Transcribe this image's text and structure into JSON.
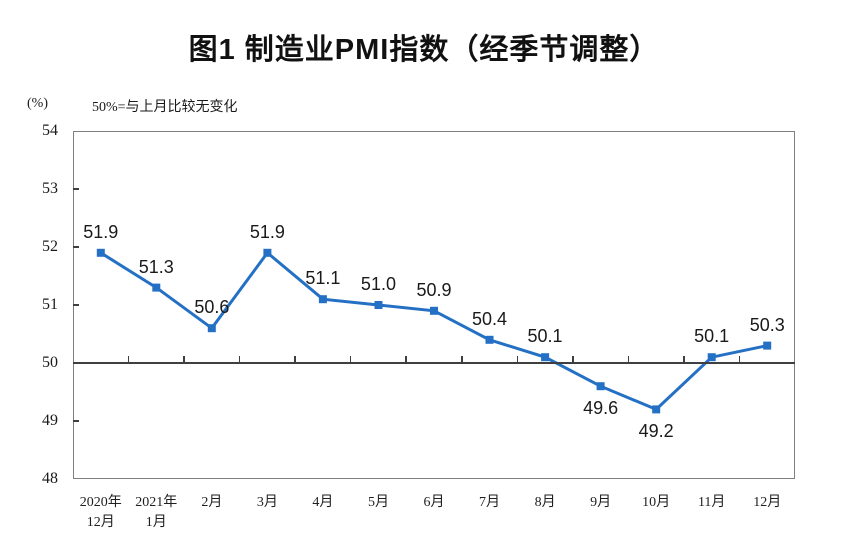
{
  "chart_data": {
    "type": "line",
    "title": "图1 制造业PMI指数（经季节调整）",
    "unit_label": "(%)",
    "note": "50%=与上月比较无变化",
    "categories": [
      "2020年\n12月",
      "2021年\n1月",
      "2月",
      "3月",
      "4月",
      "5月",
      "6月",
      "7月",
      "8月",
      "9月",
      "10月",
      "11月",
      "12月"
    ],
    "values": [
      51.9,
      51.3,
      50.6,
      51.9,
      51.1,
      51.0,
      50.9,
      50.4,
      50.1,
      49.6,
      49.2,
      50.1,
      50.3
    ],
    "value_labels": [
      "51.9",
      "51.3",
      "50.6",
      "51.9",
      "51.1",
      "51.0",
      "50.9",
      "50.4",
      "50.1",
      "49.6",
      "49.2",
      "50.1",
      "50.3"
    ],
    "label_positions": [
      "above",
      "above",
      "above",
      "above",
      "above",
      "above",
      "above",
      "above",
      "above",
      "below",
      "below",
      "above",
      "above"
    ],
    "ylabel": "(%)",
    "xlabel": "",
    "ylim": [
      48,
      54
    ],
    "y_ticks": [
      48,
      49,
      50,
      51,
      52,
      53,
      54
    ],
    "reference_line": 50,
    "grid": "off",
    "legend": "none",
    "line_color": "#2470c4",
    "axis_color": "#7f7f7f",
    "reference_line_color": "#3f3f3f"
  }
}
